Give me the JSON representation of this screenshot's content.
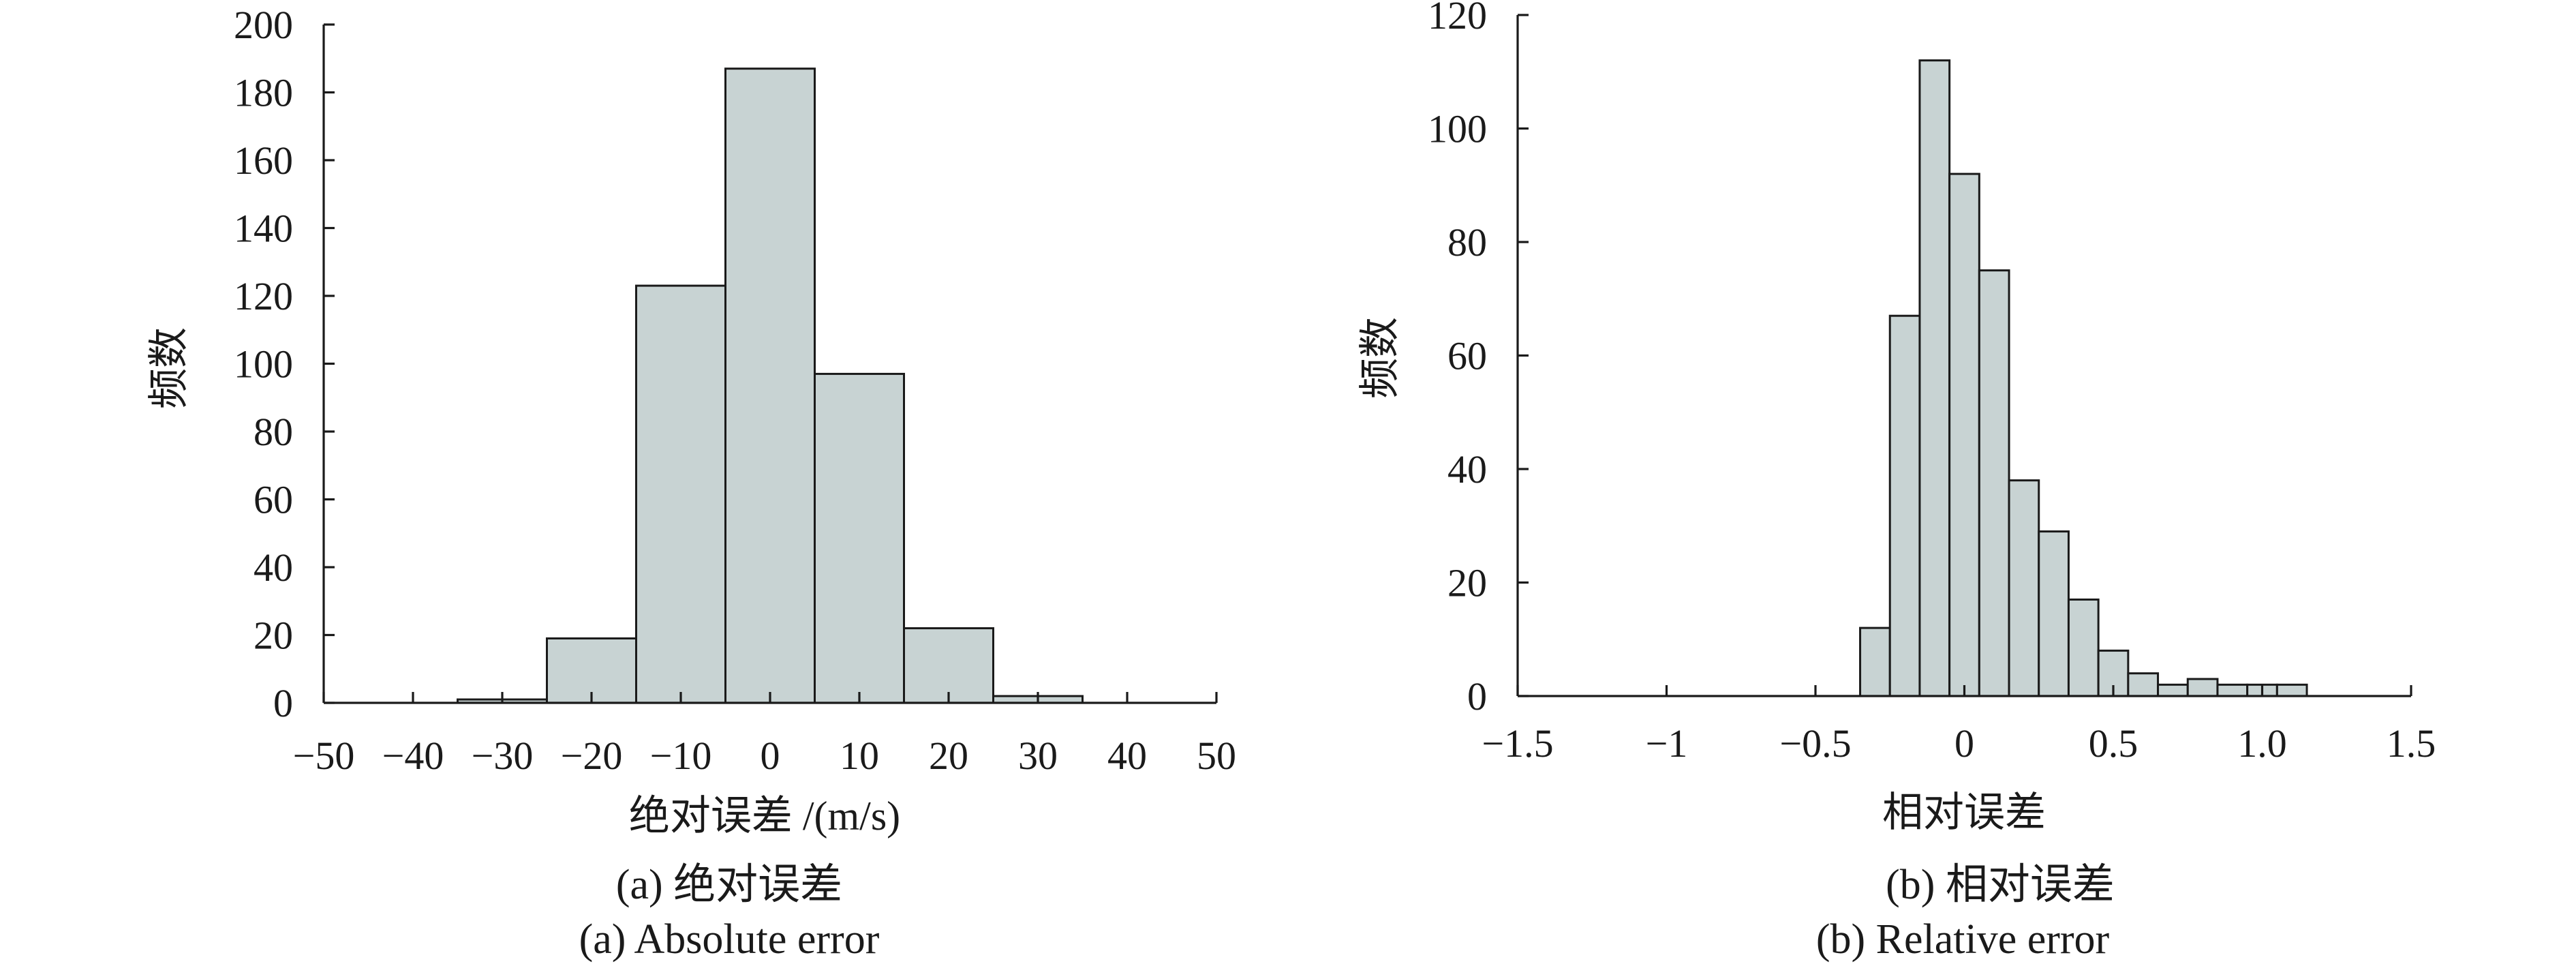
{
  "chart_data": [
    {
      "type": "bar",
      "id": "a",
      "ylabel": "频数",
      "xlabel": "绝对误差 /(m/s)",
      "caption_cn": "(a) 绝对误差",
      "caption_en": "(a) Absolute error",
      "xlim": [
        -50,
        50
      ],
      "ylim": [
        0,
        200
      ],
      "xticks": [
        -50,
        -40,
        -30,
        -20,
        -10,
        0,
        10,
        20,
        30,
        40,
        50
      ],
      "xtick_labels": [
        "−50",
        "−40",
        "−30",
        "−20",
        "−10",
        "0",
        "10",
        "20",
        "30",
        "40",
        "50"
      ],
      "yticks": [
        0,
        20,
        40,
        60,
        80,
        100,
        120,
        140,
        160,
        180,
        200
      ],
      "ytick_labels": [
        "0",
        "20",
        "40",
        "60",
        "80",
        "100",
        "120",
        "140",
        "160",
        "180",
        "200"
      ],
      "bins": [
        {
          "x0": -35,
          "x1": -25,
          "value": 1
        },
        {
          "x0": -25,
          "x1": -15,
          "value": 19
        },
        {
          "x0": -15,
          "x1": -5,
          "value": 123
        },
        {
          "x0": -5,
          "x1": 5,
          "value": 187
        },
        {
          "x0": 5,
          "x1": 15,
          "value": 97
        },
        {
          "x0": 15,
          "x1": 25,
          "value": 22
        },
        {
          "x0": 25,
          "x1": 35,
          "value": 2
        }
      ],
      "grid": false,
      "legend": "none",
      "bar_color": "#c8d3d3"
    },
    {
      "type": "bar",
      "id": "b",
      "ylabel": "频数",
      "xlabel": "相对误差",
      "caption_cn": "(b) 相对误差",
      "caption_en": "(b) Relative error",
      "xlim": [
        -1.5,
        1.5
      ],
      "ylim": [
        0,
        120
      ],
      "xticks": [
        -1.5,
        -1,
        -0.5,
        0,
        0.5,
        1.0,
        1.5
      ],
      "xtick_labels": [
        "−1.5",
        "−1",
        "−0.5",
        "0",
        "0.5",
        "1.0",
        "1.5"
      ],
      "yticks": [
        0,
        20,
        40,
        60,
        80,
        100,
        120
      ],
      "ytick_labels": [
        "0",
        "20",
        "40",
        "60",
        "80",
        "100",
        "120"
      ],
      "bins": [
        {
          "x0": -0.35,
          "x1": -0.25,
          "value": 12
        },
        {
          "x0": -0.25,
          "x1": -0.15,
          "value": 67
        },
        {
          "x0": -0.15,
          "x1": -0.05,
          "value": 112
        },
        {
          "x0": -0.05,
          "x1": 0.05,
          "value": 92
        },
        {
          "x0": 0.05,
          "x1": 0.15,
          "value": 75
        },
        {
          "x0": 0.15,
          "x1": 0.25,
          "value": 38
        },
        {
          "x0": 0.25,
          "x1": 0.35,
          "value": 29
        },
        {
          "x0": 0.35,
          "x1": 0.45,
          "value": 17
        },
        {
          "x0": 0.45,
          "x1": 0.55,
          "value": 8
        },
        {
          "x0": 0.55,
          "x1": 0.65,
          "value": 4
        },
        {
          "x0": 0.65,
          "x1": 0.75,
          "value": 2
        },
        {
          "x0": 0.75,
          "x1": 0.85,
          "value": 3
        },
        {
          "x0": 0.85,
          "x1": 0.95,
          "value": 2
        },
        {
          "x0": 0.95,
          "x1": 1.05,
          "value": 2
        },
        {
          "x0": 1.05,
          "x1": 1.15,
          "value": 2
        }
      ],
      "grid": false,
      "legend": "none",
      "bar_color": "#c8d3d3"
    }
  ]
}
